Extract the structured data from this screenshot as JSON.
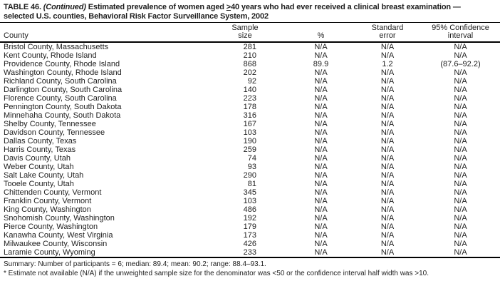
{
  "title": {
    "table_label": "TABLE 46.",
    "continued": "(Continued)",
    "line1_before_geq": "Estimated prevalence of women aged",
    "geq_symbol": ">",
    "line1_after_geq": "40 years who had ever received a clinical breast examination —",
    "line2": "selected U.S. counties, Behavioral Risk Factor Surveillance System, 2002"
  },
  "table": {
    "columns": [
      {
        "id": "county",
        "lines": [
          "County"
        ]
      },
      {
        "id": "sample_size",
        "lines": [
          "Sample",
          "size"
        ]
      },
      {
        "id": "percent",
        "lines": [
          "%"
        ]
      },
      {
        "id": "std_error",
        "lines": [
          "Standard",
          "error"
        ]
      },
      {
        "id": "ci",
        "lines": [
          "95% Confidence",
          "interval"
        ]
      }
    ],
    "rows": [
      {
        "county": "Bristol County, Massachusetts",
        "sample_size": "281",
        "percent": "N/A",
        "std_error": "N/A",
        "ci": "N/A"
      },
      {
        "county": "Kent County, Rhode Island",
        "sample_size": "210",
        "percent": "N/A",
        "std_error": "N/A",
        "ci": "N/A"
      },
      {
        "county": "Providence County, Rhode Island",
        "sample_size": "868",
        "percent": "89.9",
        "std_error": "1.2",
        "ci": "(87.6–92.2)"
      },
      {
        "county": "Washington County, Rhode Island",
        "sample_size": "202",
        "percent": "N/A",
        "std_error": "N/A",
        "ci": "N/A"
      },
      {
        "county": "Richland County, South Carolina",
        "sample_size": "92",
        "percent": "N/A",
        "std_error": "N/A",
        "ci": "N/A"
      },
      {
        "county": "Darlington County, South Carolina",
        "sample_size": "140",
        "percent": "N/A",
        "std_error": "N/A",
        "ci": "N/A"
      },
      {
        "county": "Florence County, South Carolina",
        "sample_size": "223",
        "percent": "N/A",
        "std_error": "N/A",
        "ci": "N/A"
      },
      {
        "county": "Pennington County, South Dakota",
        "sample_size": "178",
        "percent": "N/A",
        "std_error": "N/A",
        "ci": "N/A"
      },
      {
        "county": "Minnehaha County, South Dakota",
        "sample_size": "316",
        "percent": "N/A",
        "std_error": "N/A",
        "ci": "N/A"
      },
      {
        "county": "Shelby County, Tennessee",
        "sample_size": "167",
        "percent": "N/A",
        "std_error": "N/A",
        "ci": "N/A"
      },
      {
        "county": "Davidson County, Tennessee",
        "sample_size": "103",
        "percent": "N/A",
        "std_error": "N/A",
        "ci": "N/A"
      },
      {
        "county": "Dallas County, Texas",
        "sample_size": "190",
        "percent": "N/A",
        "std_error": "N/A",
        "ci": "N/A"
      },
      {
        "county": "Harris County, Texas",
        "sample_size": "259",
        "percent": "N/A",
        "std_error": "N/A",
        "ci": "N/A"
      },
      {
        "county": "Davis County, Utah",
        "sample_size": "74",
        "percent": "N/A",
        "std_error": "N/A",
        "ci": "N/A"
      },
      {
        "county": "Weber County, Utah",
        "sample_size": "93",
        "percent": "N/A",
        "std_error": "N/A",
        "ci": "N/A"
      },
      {
        "county": "Salt Lake County, Utah",
        "sample_size": "290",
        "percent": "N/A",
        "std_error": "N/A",
        "ci": "N/A"
      },
      {
        "county": "Tooele County, Utah",
        "sample_size": "81",
        "percent": "N/A",
        "std_error": "N/A",
        "ci": "N/A"
      },
      {
        "county": "Chittenden County, Vermont",
        "sample_size": "345",
        "percent": "N/A",
        "std_error": "N/A",
        "ci": "N/A"
      },
      {
        "county": "Franklin County, Vermont",
        "sample_size": "103",
        "percent": "N/A",
        "std_error": "N/A",
        "ci": "N/A"
      },
      {
        "county": "King County, Washington",
        "sample_size": "486",
        "percent": "N/A",
        "std_error": "N/A",
        "ci": "N/A"
      },
      {
        "county": "Snohomish County, Washington",
        "sample_size": "192",
        "percent": "N/A",
        "std_error": "N/A",
        "ci": "N/A"
      },
      {
        "county": "Pierce County, Washington",
        "sample_size": "179",
        "percent": "N/A",
        "std_error": "N/A",
        "ci": "N/A"
      },
      {
        "county": "Kanawha County, West Virginia",
        "sample_size": "173",
        "percent": "N/A",
        "std_error": "N/A",
        "ci": "N/A"
      },
      {
        "county": "Milwaukee County, Wisconsin",
        "sample_size": "426",
        "percent": "N/A",
        "std_error": "N/A",
        "ci": "N/A"
      },
      {
        "county": "Laramie County, Wyoming",
        "sample_size": "233",
        "percent": "N/A",
        "std_error": "N/A",
        "ci": "N/A"
      }
    ]
  },
  "footer": {
    "summary": "Summary: Number of participants = 6; median: 89.4; mean: 90.2; range: 88.4–93.1.",
    "footnote": "* Estimate not available (N/A) if the unweighted sample size for the denominator was <50 or the confidence interval half width was >10."
  },
  "colors": {
    "text": "#1e1e1e",
    "rule": "#000000",
    "background": "#ffffff"
  }
}
